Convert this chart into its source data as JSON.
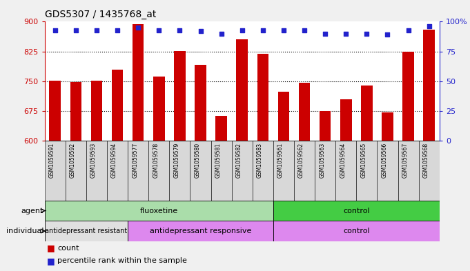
{
  "title": "GDS5307 / 1435768_at",
  "samples": [
    "GSM1059591",
    "GSM1059592",
    "GSM1059593",
    "GSM1059594",
    "GSM1059577",
    "GSM1059578",
    "GSM1059579",
    "GSM1059580",
    "GSM1059581",
    "GSM1059582",
    "GSM1059583",
    "GSM1059561",
    "GSM1059562",
    "GSM1059563",
    "GSM1059564",
    "GSM1059565",
    "GSM1059566",
    "GSM1059567",
    "GSM1059568"
  ],
  "bar_values": [
    752,
    748,
    752,
    780,
    893,
    762,
    827,
    792,
    663,
    855,
    820,
    724,
    746,
    676,
    704,
    740,
    672,
    825,
    880
  ],
  "percentile_values": [
    93,
    93,
    93,
    93,
    95,
    93,
    93,
    92,
    90,
    93,
    93,
    93,
    93,
    90,
    90,
    90,
    89,
    93,
    96
  ],
  "ylim_left": [
    600,
    900
  ],
  "yticks_left": [
    600,
    675,
    750,
    825,
    900
  ],
  "yticks_right_vals": [
    0,
    25,
    50,
    75,
    100
  ],
  "yticklabels_right": [
    "0",
    "25",
    "50",
    "75",
    "100%"
  ],
  "bar_color": "#cc0000",
  "dot_color": "#2222cc",
  "agent_groups": [
    {
      "label": "fluoxetine",
      "start": 0,
      "end": 10,
      "color": "#aaddaa"
    },
    {
      "label": "control",
      "start": 11,
      "end": 18,
      "color": "#44cc44"
    }
  ],
  "individual_groups": [
    {
      "label": "antidepressant resistant",
      "start": 0,
      "end": 3,
      "color": "#e0e0e0"
    },
    {
      "label": "antidepressant responsive",
      "start": 4,
      "end": 10,
      "color": "#dd88ee"
    },
    {
      "label": "control",
      "start": 11,
      "end": 18,
      "color": "#dd88ee"
    }
  ],
  "label_agent": "agent",
  "label_individual": "individual",
  "legend": [
    {
      "color": "#cc0000",
      "text": "count"
    },
    {
      "color": "#2222cc",
      "text": "percentile rank within the sample"
    }
  ],
  "bg_color": "#f0f0f0",
  "grid_yticks": [
    675,
    750,
    825
  ]
}
